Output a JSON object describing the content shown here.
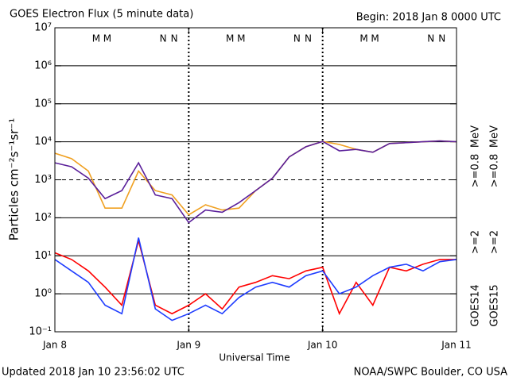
{
  "chart_data": {
    "type": "line",
    "title": "GOES Electron Flux (5 minute data)",
    "subtitle": "Begin: 2018 Jan 8 0000 UTC",
    "xlabel": "Universal Time",
    "ylabel": "Particles cm⁻²s⁻¹sr⁻¹",
    "footer_left": "Updated 2018 Jan 10 23:56:02 UTC",
    "footer_right": "NOAA/SWPC Boulder, CO USA",
    "log_y": true,
    "ylim": [
      0.1,
      10000000
    ],
    "yticks": [
      {
        "value": 0.1,
        "label": "10⁻¹"
      },
      {
        "value": 1,
        "label": "10⁰"
      },
      {
        "value": 10,
        "label": "10¹"
      },
      {
        "value": 100,
        "label": "10²"
      },
      {
        "value": 1000,
        "label": "10³"
      },
      {
        "value": 10000,
        "label": "10⁴"
      },
      {
        "value": 100000,
        "label": "10⁵"
      },
      {
        "value": 1000000,
        "label": "10⁶"
      },
      {
        "value": 10000000,
        "label": "10⁷"
      }
    ],
    "threshold": 1000,
    "xlim": [
      0,
      72
    ],
    "xticks": [
      {
        "value": 0,
        "label": "Jan 8"
      },
      {
        "value": 24,
        "label": "Jan 9"
      },
      {
        "value": 48,
        "label": "Jan 10"
      },
      {
        "value": 72,
        "label": "Jan 11"
      }
    ],
    "x": [
      0,
      3,
      6,
      9,
      12,
      15,
      18,
      21,
      24,
      27,
      30,
      33,
      36,
      39,
      42,
      45,
      48,
      51,
      54,
      57,
      60,
      63,
      66,
      69,
      72
    ],
    "satellites": [
      "GOES14",
      "GOES15"
    ],
    "unit": "MeV",
    "series": [
      {
        "name": ">=0.8",
        "satellite": 0,
        "color": "#f0a020",
        "values": [
          5000,
          3600,
          1700,
          180,
          180,
          1700,
          520,
          400,
          120,
          220,
          160,
          180,
          520,
          1100,
          4000,
          7400,
          10200,
          8500,
          6300,
          5300,
          9000,
          9500,
          10000,
          10500,
          10000
        ]
      },
      {
        "name": ">=0.8",
        "satellite": 1,
        "color": "#5a1f9a",
        "values": [
          2800,
          2200,
          1100,
          320,
          520,
          2800,
          400,
          320,
          75,
          160,
          140,
          250,
          520,
          1100,
          4000,
          7400,
          10200,
          5800,
          6300,
          5300,
          9000,
          9500,
          10000,
          10500,
          10000
        ]
      },
      {
        "name": ">=2",
        "satellite": 0,
        "color": "#ff0000",
        "values": [
          12,
          8,
          4,
          1.5,
          0.5,
          25,
          0.5,
          0.3,
          0.5,
          1,
          0.4,
          1.5,
          2,
          3,
          2.5,
          4,
          5,
          0.3,
          2,
          0.5,
          5,
          4,
          6,
          8,
          8
        ]
      },
      {
        "name": ">=2",
        "satellite": 1,
        "color": "#1e3cff",
        "values": [
          8,
          4,
          2,
          0.5,
          0.3,
          30,
          0.4,
          0.2,
          0.3,
          0.5,
          0.3,
          0.8,
          1.5,
          2,
          1.5,
          3,
          4,
          1,
          1.5,
          3,
          5,
          6,
          4,
          7,
          8
        ]
      }
    ],
    "annotations": [
      {
        "text": "M",
        "x": 7.4,
        "color": "#2020d0"
      },
      {
        "text": "M",
        "x": 9.4,
        "color": "#e00000"
      },
      {
        "text": "N",
        "x": 19.4,
        "color": "#2020d0"
      },
      {
        "text": "N",
        "x": 21.4,
        "color": "#e00000"
      },
      {
        "text": "M",
        "x": 31.4,
        "color": "#2020d0"
      },
      {
        "text": "M",
        "x": 33.4,
        "color": "#e00000"
      },
      {
        "text": "N",
        "x": 43.4,
        "color": "#2020d0"
      },
      {
        "text": "N",
        "x": 45.4,
        "color": "#e00000"
      },
      {
        "text": "M",
        "x": 55.4,
        "color": "#2020d0"
      },
      {
        "text": "M",
        "x": 57.4,
        "color": "#e00000"
      },
      {
        "text": "N",
        "x": 67.4,
        "color": "#2020d0"
      },
      {
        "text": "N",
        "x": 69.4,
        "color": "#e00000"
      }
    ]
  }
}
